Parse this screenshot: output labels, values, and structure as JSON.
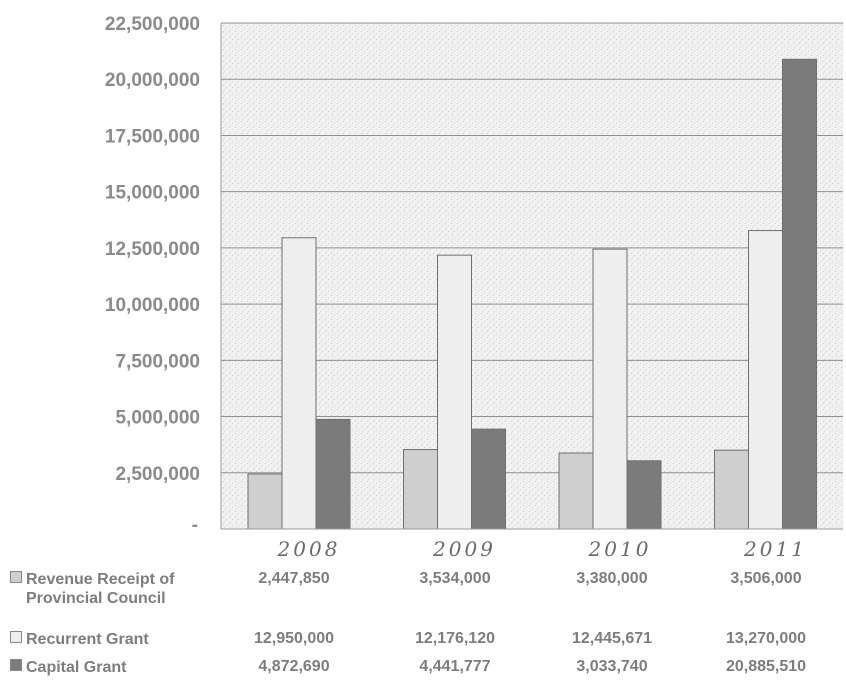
{
  "chart_data": {
    "type": "bar",
    "title": "",
    "xlabel": "",
    "ylabel": "",
    "categories": [
      "2008",
      "2009",
      "2010",
      "2011"
    ],
    "category_labels": [
      "2008",
      "2009",
      "2010",
      "2011"
    ],
    "ylim": [
      0,
      22500000
    ],
    "yticks": [
      2500000,
      5000000,
      7500000,
      10000000,
      12500000,
      15000000,
      17500000,
      20000000,
      22500000
    ],
    "ytick_labels": [
      "2,500,000",
      "5,000,000",
      "7,500,000",
      "10,000,000",
      "12,500,000",
      "15,000,000",
      "17,500,000",
      "20,000,000",
      "22,500,000"
    ],
    "zero_tick_label": "-",
    "grid": true,
    "legend_position": "data table below chart",
    "series": [
      {
        "name": "Revenue Receipt of Provincial Council",
        "name_lines": [
          "Revenue Receipt of",
          "Provincial Council"
        ],
        "values": [
          2447850,
          3534000,
          3380000,
          3506000
        ],
        "value_labels": [
          "2,447,850",
          "3,534,000",
          "3,380,000",
          "3,506,000"
        ],
        "color": "#cfcfcf"
      },
      {
        "name": "Recurrent Grant",
        "name_lines": [
          "Recurrent Grant"
        ],
        "values": [
          12950000,
          12176120,
          12445671,
          13270000
        ],
        "value_labels": [
          "12,950,000",
          "12,176,120",
          "12,445,671",
          "13,270,000"
        ],
        "color": "#eeeeee"
      },
      {
        "name": "Capital Grant",
        "name_lines": [
          "Capital Grant"
        ],
        "values": [
          4872690,
          4441777,
          3033740,
          20885510
        ],
        "value_labels": [
          "4,872,690",
          "4,441,777",
          "3,033,740",
          "20,885,510"
        ],
        "color": "#7b7b7b"
      }
    ]
  }
}
